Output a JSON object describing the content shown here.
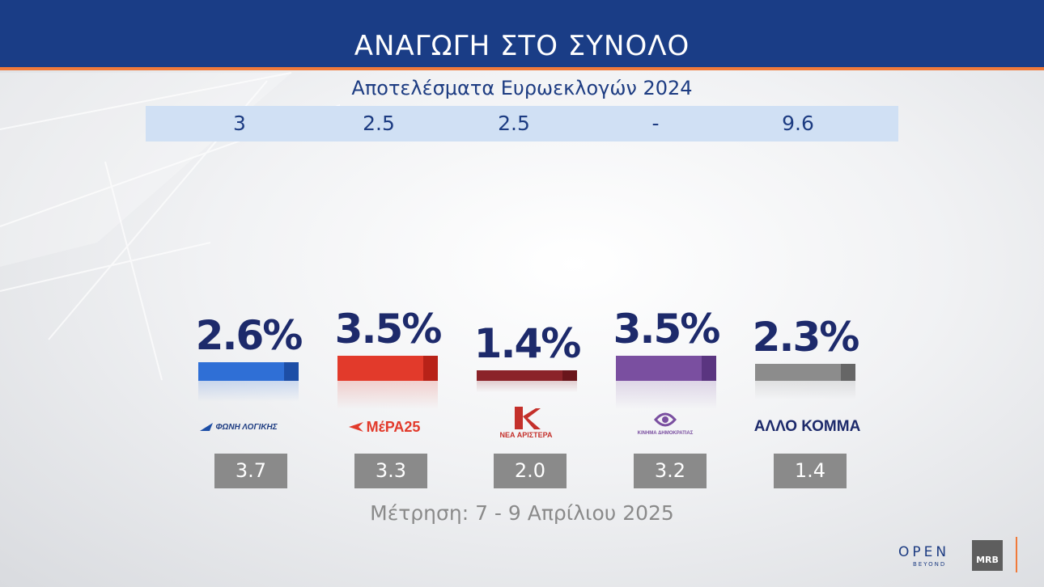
{
  "header": {
    "title": "ΑΝΑΓΩΓΗ ΣΤΟ ΣΥΝΟΛΟ"
  },
  "reference": {
    "label": "Αποτελέσματα Ευρωεκλογών 2024",
    "values": [
      "3",
      "2.5",
      "2.5",
      "-",
      "9.6"
    ]
  },
  "chart_data": {
    "type": "bar",
    "categories": [
      "ΦΩΝΗ ΛΟΓΙΚΗΣ",
      "ΜέΡΑ25",
      "ΝΕΑ ΑΡΙΣΤΕΡΑ",
      "ΚΙΝΗΜΑ ΔΗΜΟΚΡΑΤΙΑΣ",
      "ΑΛΛΟ ΚΟΜΜΑ"
    ],
    "values": [
      2.6,
      3.5,
      1.4,
      3.5,
      2.3
    ],
    "value_labels": [
      "2.6%",
      "3.5%",
      "1.4%",
      "3.5%",
      "2.3%"
    ],
    "previous_values": [
      "3.7",
      "3.3",
      "2.0",
      "3.2",
      "1.4"
    ],
    "colors": [
      "#2f6fd6",
      "#e23a2b",
      "#8b2329",
      "#7a4fa0",
      "#8c8c8c"
    ],
    "end_colors": [
      "#1d4ea6",
      "#b82218",
      "#6a151b",
      "#5a3580",
      "#666666"
    ]
  },
  "logos": {
    "foni_logikis": "ΦΩΝΗ ΛΟΓΙΚΗΣ",
    "mera25": "ΜέΡΑ25",
    "nea_aristera": "ΝΕΑ ΑΡΙΣΤΕΡΑ",
    "kinima": "ΚΙΝΗΜΑ ΔΗΜΟΚΡΑΤΙΑΣ",
    "allo": "ΑΛΛΟ ΚΟΜΜΑ"
  },
  "footer": {
    "measurement": "Μέτρηση: 7 - 9 Απρίλιου 2025"
  },
  "branding": {
    "open": "OPEN",
    "beyond": "BEYOND",
    "mrb": "MRB"
  }
}
